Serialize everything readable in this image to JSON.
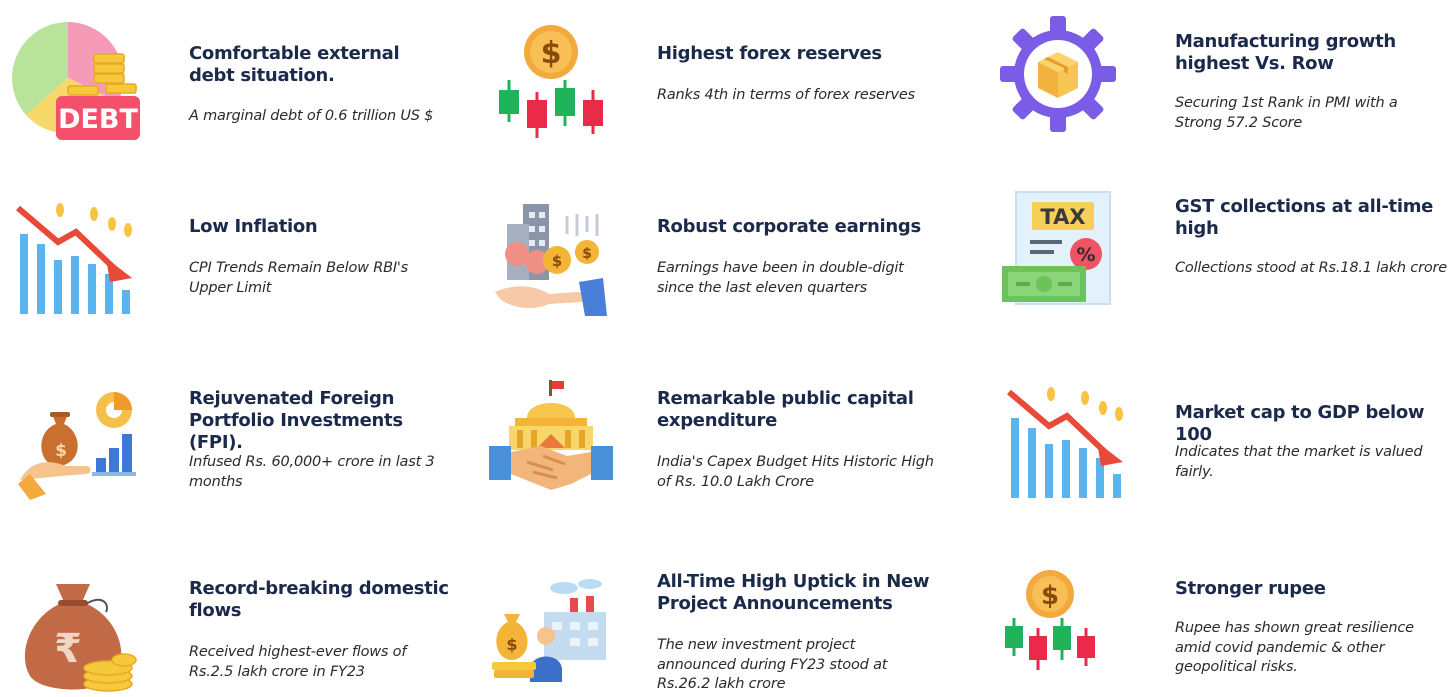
{
  "cards": [
    {
      "title": "Comfortable external debt situation.",
      "description": "A marginal debt of 0.6 trillion US $",
      "icon": "debt-pie-coins-icon",
      "icon_label": "DEBT"
    },
    {
      "title": "Highest forex reserves",
      "description": "Ranks 4th in terms of forex reserves",
      "icon": "dollar-candlestick-icon",
      "icon_label": "$"
    },
    {
      "title": "Manufacturing growth highest Vs. Row",
      "description": "Securing 1st Rank in PMI with a Strong 57.2 Score",
      "icon": "gear-box-icon"
    },
    {
      "title": "Low Inflation",
      "description": "CPI Trends Remain Below RBI's Upper Limit",
      "icon": "falling-bar-chart-icon"
    },
    {
      "title": "Robust corporate earnings",
      "description": "Earnings have been in double-digit since the last  eleven quarters",
      "icon": "hand-coins-building-icon",
      "icon_label": "$"
    },
    {
      "title": "GST collections at all-time high",
      "description": "Collections stood at Rs.18.1 lakh crore",
      "icon": "tax-document-icon",
      "icon_label": "TAX"
    },
    {
      "title": "Rejuvenated Foreign Portfolio Investments (FPI).",
      "description": "Infused Rs. 60,000+ crore in last 3 months",
      "icon": "hand-money-bag-chart-icon",
      "icon_label": "$"
    },
    {
      "title": "Remarkable public capital expenditure",
      "description": "India's Capex Budget Hits Historic High of Rs. 10.0 Lakh Crore",
      "icon": "handshake-government-icon"
    },
    {
      "title": "Market cap to GDP below 100",
      "description": "Indicates that the market is valued fairly.",
      "icon": "falling-bar-chart-icon"
    },
    {
      "title": "Record-breaking domestic flows",
      "description": "Received highest-ever flows of Rs.2.5 lakh crore in FY23",
      "icon": "rupee-money-bag-icon",
      "icon_label": "₹"
    },
    {
      "title": "All-Time High Uptick in New Project Announcements",
      "description": "The new investment project announced during FY23 stood at Rs.26.2 lakh crore",
      "icon": "factory-investor-icon",
      "icon_label": "$"
    },
    {
      "title": "Stronger rupee",
      "description": "Rupee has shown great resilience amid covid pandemic & other geopolitical risks.",
      "icon": "dollar-candlestick-icon",
      "icon_label": "$"
    }
  ],
  "colors": {
    "title": "#1b2a4a",
    "description": "#2b2b2b",
    "green": "#1fb35b",
    "red": "#ea2a49",
    "gold": "#f3a93b",
    "blue": "#4fa6e8"
  }
}
